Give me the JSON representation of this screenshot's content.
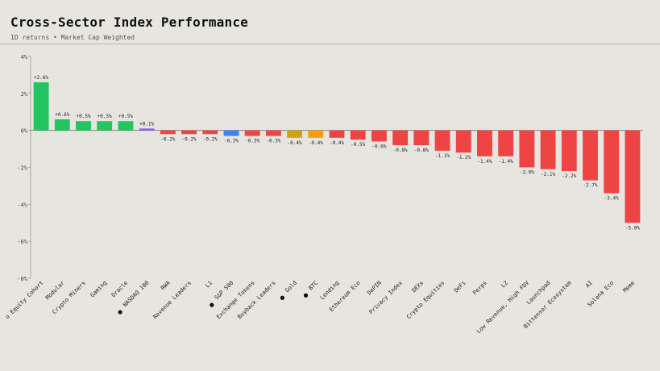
{
  "header": {
    "title": "Cross-Sector Index Performance",
    "subtitle": "1D returns • Market Cap Weighted"
  },
  "colors": {
    "positive": "#22c55e",
    "negative": "#ef4444",
    "benchmark_positive": "#8b5cf6",
    "benchmark_sp500": "#3b82f6",
    "benchmark_gold": "#d4a017",
    "benchmark_btc": "#f59e0b"
  },
  "chart_data": {
    "type": "bar",
    "title": "Cross-Sector Index Performance",
    "subtitle": "1D returns • Market Cap Weighted",
    "xlabel": "",
    "ylabel": "",
    "ylim": [
      -8,
      4
    ],
    "yticks": [
      -8,
      -6,
      -4,
      -2,
      0,
      2,
      4
    ],
    "ytick_labels": [
      "-8%",
      "-6%",
      "-4%",
      "-2%",
      "0%",
      "2%",
      "4%"
    ],
    "grid": false,
    "legend": "none",
    "categories": [
      "Equity Cohort",
      "Modular",
      "Crypto Miners",
      "Gaming",
      "Oracle",
      "NASDAQ 100",
      "RWA",
      "Revenue Leaders",
      "L1",
      "S&P 500",
      "Exchange Tokens",
      "Buyback Leaders",
      "Gold",
      "BTC",
      "Lending",
      "Ethereum Eco",
      "DePIN",
      "Privacy Index",
      "DEXs",
      "Crypto Equities",
      "DeFi",
      "Perps",
      "L2",
      "Low Revenue, High FDV",
      "Launchpad",
      "Bittensor Ecosystem",
      "AI",
      "Solana Eco",
      "Meme"
    ],
    "category_labels": [
      "o Equity Cohort",
      "Modular",
      "Crypto Miners",
      "Gaming",
      "Oracle",
      "NASDAQ 100",
      "RWA",
      "Revenue Leaders",
      "L1",
      "S&P 500",
      "Exchange Tokens",
      "Buyback Leaders",
      "Gold",
      "BTC",
      "Lending",
      "Ethereum Eco",
      "DePIN",
      "Privacy Index",
      "DEXs",
      "Crypto Equities",
      "DeFi",
      "Perps",
      "L2",
      "Low Revenue, High FDV",
      "Launchpad",
      "Bittensor Ecosystem",
      "AI",
      "Solana Eco",
      "Meme"
    ],
    "benchmark_markers": [
      false,
      false,
      false,
      false,
      false,
      true,
      false,
      false,
      false,
      true,
      false,
      false,
      true,
      true,
      false,
      false,
      false,
      false,
      false,
      false,
      false,
      false,
      false,
      false,
      false,
      false,
      false,
      false,
      false
    ],
    "values": [
      2.6,
      0.6,
      0.5,
      0.5,
      0.5,
      0.1,
      -0.2,
      -0.2,
      -0.2,
      -0.3,
      -0.3,
      -0.3,
      -0.4,
      -0.4,
      -0.4,
      -0.5,
      -0.6,
      -0.8,
      -0.8,
      -1.1,
      -1.2,
      -1.4,
      -1.4,
      -2.0,
      -2.1,
      -2.2,
      -2.7,
      -3.4,
      -5.0
    ],
    "value_labels": [
      "+2.6%",
      "+0.6%",
      "+0.5%",
      "+0.5%",
      "+0.5%",
      "+0.1%",
      "-0.2%",
      "-0.2%",
      "-0.2%",
      "-0.3%",
      "-0.3%",
      "-0.3%",
      "-0.4%",
      "-0.4%",
      "-0.4%",
      "-0.5%",
      "-0.6%",
      "-0.8%",
      "-0.8%",
      "-1.1%",
      "-1.2%",
      "-1.4%",
      "-1.4%",
      "-2.0%",
      "-2.1%",
      "-2.2%",
      "-2.7%",
      "-3.4%",
      "-5.0%"
    ],
    "bar_colors": [
      "#22c55e",
      "#22c55e",
      "#22c55e",
      "#22c55e",
      "#22c55e",
      "#8b5cf6",
      "#ef4444",
      "#ef4444",
      "#ef4444",
      "#3b82f6",
      "#ef4444",
      "#ef4444",
      "#d4a017",
      "#f59e0b",
      "#ef4444",
      "#ef4444",
      "#ef4444",
      "#ef4444",
      "#ef4444",
      "#ef4444",
      "#ef4444",
      "#ef4444",
      "#ef4444",
      "#ef4444",
      "#ef4444",
      "#ef4444",
      "#ef4444",
      "#ef4444",
      "#ef4444"
    ]
  }
}
